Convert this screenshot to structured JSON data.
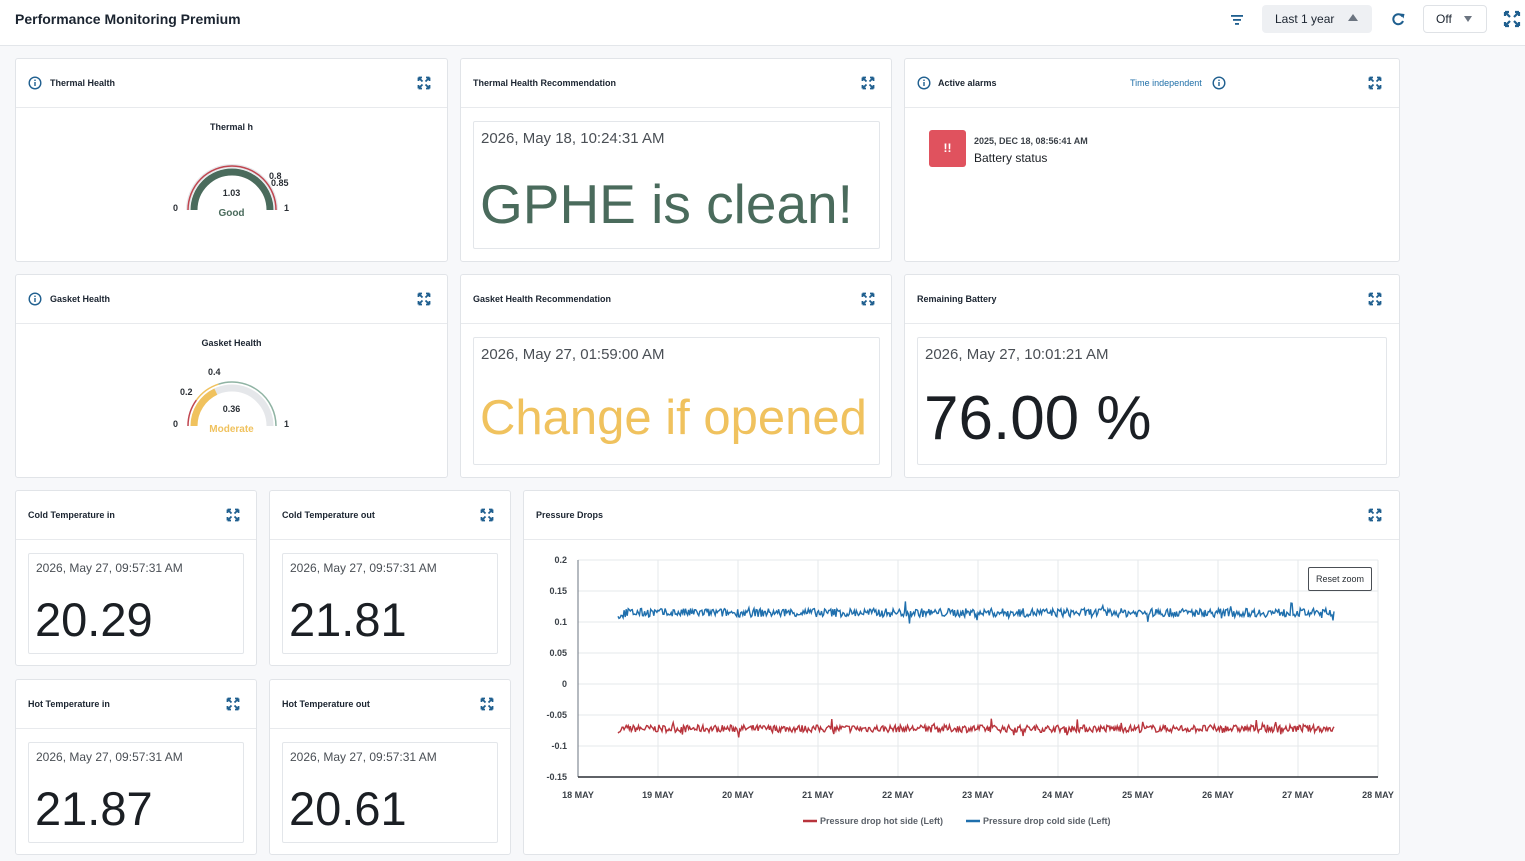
{
  "header": {
    "title": "Performance Monitoring Premium",
    "time_range": "Last 1 year",
    "auto_refresh": "Off"
  },
  "thermal_health": {
    "title": "Thermal Health",
    "gauge_title": "Thermal h",
    "min_label": "0",
    "max_label": "1",
    "threshold_1": "0.8",
    "threshold_2": "0.85",
    "value": "1.03",
    "status": "Good",
    "level": 1.0
  },
  "thermal_rec": {
    "title": "Thermal Health Recommendation",
    "timestamp": "2026, May 18, 10:24:31 AM",
    "text": "GPHE is clean!"
  },
  "alarms": {
    "title": "Active alarms",
    "time_independent": "Time independent",
    "badge": "!!",
    "items": [
      {
        "time": "2025, DEC 18, 08:56:41 AM",
        "name": "Battery status"
      }
    ]
  },
  "gasket_health": {
    "title": "Gasket Health",
    "gauge_title": "Gasket Health",
    "min_label": "0",
    "max_label": "1",
    "threshold_1": "0.2",
    "threshold_2": "0.4",
    "value": "0.36",
    "status": "Moderate",
    "level": 0.36
  },
  "gasket_rec": {
    "title": "Gasket Health Recommendation",
    "timestamp": "2026, May 27, 01:59:00 AM",
    "text": "Change if opened"
  },
  "battery": {
    "title": "Remaining Battery",
    "timestamp": "2026, May 27, 10:01:21 AM",
    "value": "76.00 %"
  },
  "cold_in": {
    "title": "Cold Temperature in",
    "timestamp": "2026, May 27, 09:57:31 AM",
    "value": "20.29"
  },
  "cold_out": {
    "title": "Cold Temperature out",
    "timestamp": "2026, May 27, 09:57:31 AM",
    "value": "21.81"
  },
  "hot_in": {
    "title": "Hot Temperature in",
    "timestamp": "2026, May 27, 09:57:31 AM",
    "value": "21.87"
  },
  "hot_out": {
    "title": "Hot Temperature out",
    "timestamp": "2026, May 27, 09:57:31 AM",
    "value": "20.61"
  },
  "pressure": {
    "title": "Pressure Drops",
    "reset_zoom": "Reset zoom"
  },
  "colors": {
    "good": "#4a6b5c",
    "moderate": "#f0c25e",
    "alarm": "#e0525e",
    "hot_series": "#b8343c",
    "cold_series": "#1f6fad",
    "icon_blue": "#1f5f8f"
  },
  "chart_data": {
    "type": "line",
    "title": "Pressure Drops",
    "x": [
      "18 MAY",
      "19 MAY",
      "20 MAY",
      "21 MAY",
      "22 MAY",
      "23 MAY",
      "24 MAY",
      "25 MAY",
      "26 MAY",
      "27 MAY",
      "28 MAY"
    ],
    "x_range": [
      "18 MAY",
      "28 MAY"
    ],
    "x_data_range": [
      "18 MAY 12:00",
      "27 MAY 10:00"
    ],
    "ylim": [
      -0.15,
      0.2
    ],
    "yticks": [
      "0.2",
      "0.15",
      "0.1",
      "0.05",
      "0",
      "-0.05",
      "-0.1",
      "-0.15"
    ],
    "grid": true,
    "legend_position": "bottom",
    "series": [
      {
        "name": "Pressure drop hot side (Left)",
        "color": "#b8343c",
        "mean": -0.072,
        "noise": 0.006
      },
      {
        "name": "Pressure drop cold side (Left)",
        "color": "#1f6fad",
        "mean": 0.115,
        "noise": 0.007
      }
    ]
  }
}
